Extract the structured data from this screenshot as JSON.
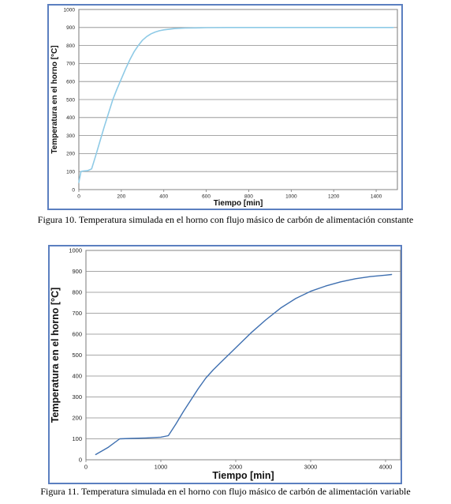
{
  "chart_data": [
    {
      "type": "line",
      "title": "",
      "xlabel": "Tiempo [min]",
      "ylabel": "Temperatura en el horno [°C]",
      "xlim": [
        0,
        1500
      ],
      "ylim": [
        0,
        1000
      ],
      "xticks": [
        0,
        200,
        400,
        600,
        800,
        1000,
        1200,
        1400
      ],
      "yticks": [
        0,
        100,
        200,
        300,
        400,
        500,
        600,
        700,
        800,
        900,
        1000
      ],
      "grid": true,
      "legend": "none",
      "series": [
        {
          "color": "#8ecae6",
          "x": [
            0,
            10,
            20,
            40,
            60,
            80,
            100,
            120,
            140,
            160,
            180,
            200,
            220,
            240,
            260,
            280,
            300,
            320,
            340,
            360,
            380,
            400,
            450,
            500,
            550,
            600,
            700,
            800,
            900,
            1000,
            1100,
            1200,
            1300,
            1400,
            1480
          ],
          "y": [
            40,
            100,
            103,
            105,
            115,
            190,
            270,
            350,
            425,
            500,
            560,
            615,
            670,
            720,
            765,
            800,
            830,
            850,
            865,
            875,
            882,
            887,
            894,
            897,
            898,
            899,
            900,
            900,
            900,
            900,
            900,
            900,
            900,
            900,
            900
          ]
        }
      ]
    },
    {
      "type": "line",
      "title": "",
      "xlabel": "Tiempo [min]",
      "ylabel": "Temperatura en el horno [°C]",
      "xlim": [
        0,
        4200
      ],
      "ylim": [
        0,
        1000
      ],
      "xticks": [
        0,
        1000,
        2000,
        3000,
        4000
      ],
      "yticks": [
        0,
        100,
        200,
        300,
        400,
        500,
        600,
        700,
        800,
        900,
        1000
      ],
      "grid": true,
      "legend": "none",
      "series": [
        {
          "color": "#3e6fb0",
          "x": [
            130,
            300,
            450,
            600,
            800,
            1000,
            1100,
            1200,
            1300,
            1400,
            1500,
            1600,
            1700,
            1800,
            1900,
            2000,
            2200,
            2400,
            2600,
            2800,
            3000,
            3200,
            3400,
            3600,
            3800,
            4000,
            4080
          ],
          "y": [
            25,
            60,
            100,
            102,
            104,
            108,
            115,
            170,
            230,
            285,
            340,
            390,
            430,
            465,
            500,
            535,
            605,
            668,
            725,
            770,
            805,
            830,
            850,
            865,
            875,
            882,
            885
          ]
        }
      ]
    }
  ],
  "captions": [
    "Figura 10. Temperatura simulada en el horno con flujo másico de carbón de alimentación constante",
    "Figura 11. Temperatura simulada en el horno con flujo másico de carbón de alimentación variable"
  ]
}
